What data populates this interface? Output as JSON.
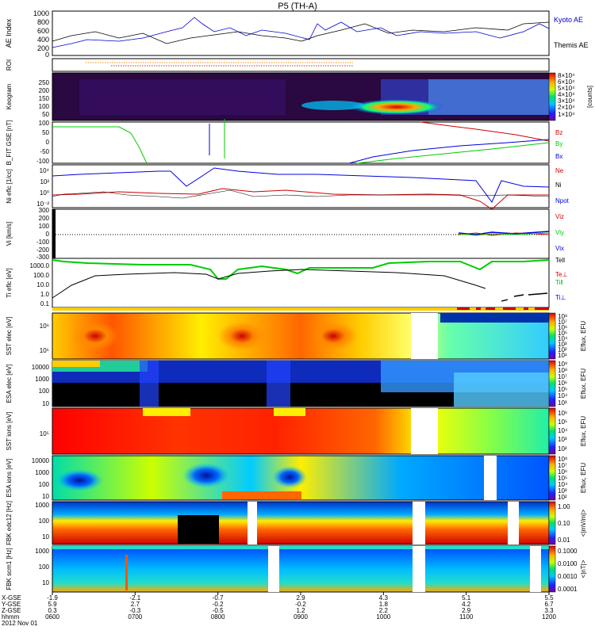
{
  "title": "P5 (TH-A)",
  "colors": {
    "kyoto": "#0000cc",
    "themis": "#000000",
    "red": "#d00000",
    "green": "#00cc00",
    "blue": "#0000dd",
    "black": "#000000",
    "orange": "#ff8800"
  },
  "chart_data": [
    {
      "type": "line",
      "id": "ae",
      "ylabel": "AE Index",
      "ylim": [
        0,
        1000
      ],
      "yticks": [
        "0",
        "200",
        "400",
        "600",
        "800",
        "1000"
      ],
      "series": [
        {
          "name": "Kyoto AE",
          "color": "#0000cc"
        },
        {
          "name": "Themis AE",
          "color": "#000000"
        }
      ],
      "values_hint": "AE varies 200-900 nT"
    },
    {
      "type": "line",
      "id": "roi",
      "ylabel": "ROI"
    },
    {
      "type": "heatmap",
      "id": "keogram",
      "ylabel": "Keogram",
      "yticks": [
        "50",
        "100",
        "150",
        "200",
        "250"
      ],
      "colorbar_label": "[counts]",
      "colorbar_ticks": [
        "8×10⁴",
        "6×10⁴",
        "5×10⁴",
        "4×10⁴",
        "3×10⁴",
        "2×10⁴",
        "1×10⁴"
      ]
    },
    {
      "type": "line",
      "id": "bfit",
      "ylabel": "B_FIT GSE [nT]",
      "ylim": [
        -100,
        100
      ],
      "yticks": [
        "100",
        "50",
        "0",
        "-50",
        "-100"
      ],
      "series": [
        {
          "name": "Bz",
          "color": "#d00000"
        },
        {
          "name": "By",
          "color": "#00cc00"
        },
        {
          "name": "Bx",
          "color": "#0000dd"
        }
      ]
    },
    {
      "type": "line",
      "id": "ni",
      "ylabel": "Ni eflc [1/cc]",
      "yticks": [
        "10⁴",
        "10²",
        "10⁰",
        "10⁻²"
      ],
      "series": [
        {
          "name": "Ne",
          "color": "#d00000"
        },
        {
          "name": "Ni",
          "color": "#000000"
        },
        {
          "name": "Npot",
          "color": "#0000dd"
        }
      ]
    },
    {
      "type": "line",
      "id": "vi",
      "ylabel": "Vi [km/s]",
      "ylim": [
        -300,
        300
      ],
      "yticks": [
        "300",
        "200",
        "100",
        "0",
        "-100",
        "-200",
        "-300"
      ],
      "series": [
        {
          "name": "Viz",
          "color": "#d00000"
        },
        {
          "name": "Viy",
          "color": "#00cc00"
        },
        {
          "name": "Vix",
          "color": "#0000dd"
        }
      ]
    },
    {
      "type": "line",
      "id": "ti",
      "ylabel": "Ti eflc [eV]",
      "yticks": [
        "1000.0",
        "100.0",
        "10.0",
        "1.0",
        "0.1"
      ],
      "series": [
        {
          "name": "Tell",
          "color": "#000000"
        },
        {
          "name": "Te⊥",
          "color": "#d00000"
        },
        {
          "name": "Ti‖",
          "color": "#00cc00"
        },
        {
          "name": "Ti⊥",
          "color": "#0000dd"
        }
      ]
    },
    {
      "type": "heatmap",
      "id": "sst_e",
      "ylabel": "SST elec [eV]",
      "yticks": [
        "10⁶",
        "10⁵"
      ],
      "colorbar_label": "Eflux, EFU",
      "colorbar_ticks": [
        "10⁸",
        "10⁷",
        "10⁶",
        "10⁵",
        "10⁴",
        "10³",
        "10²",
        "10¹"
      ]
    },
    {
      "type": "heatmap",
      "id": "esa_e",
      "ylabel": "ESA elec [eV]",
      "yticks": [
        "10000",
        "1000",
        "100",
        "10"
      ],
      "colorbar_label": "Eflux, EFU",
      "colorbar_ticks": [
        "10⁹",
        "10⁸",
        "10⁷",
        "10⁶",
        "10⁵",
        "10⁴",
        "10³"
      ]
    },
    {
      "type": "heatmap",
      "id": "sst_i",
      "ylabel": "SST ions [eV]",
      "yticks": [
        "10⁵"
      ],
      "colorbar_label": "Eflux, EFU",
      "colorbar_ticks": [
        "10⁶",
        "10⁵",
        "10⁴",
        "10³",
        "10²"
      ]
    },
    {
      "type": "heatmap",
      "id": "esa_i",
      "ylabel": "ESA ions [eV]",
      "yticks": [
        "10000",
        "1000",
        "100",
        "10"
      ],
      "colorbar_label": "Eflux, EFU",
      "colorbar_ticks": [
        "10⁸",
        "10⁷",
        "10⁶",
        "10⁵",
        "10⁴",
        "10³",
        "10²"
      ]
    },
    {
      "type": "heatmap",
      "id": "fbk_e12",
      "ylabel": "FBK edc12 [Hz]",
      "yticks": [
        "1000",
        "100",
        "10"
      ],
      "colorbar_label": "<|mV/m|>",
      "colorbar_ticks": [
        "1.00",
        "0.10",
        "0.01"
      ]
    },
    {
      "type": "heatmap",
      "id": "fbk_b",
      "ylabel": "FBK scm1 [Hz]",
      "yticks": [
        "1000",
        "100",
        "10"
      ],
      "colorbar_label": "<|nT|>",
      "colorbar_ticks": [
        "0.1000",
        "0.0100",
        "0.0010",
        "0.0001"
      ]
    }
  ],
  "xaxis": {
    "rows": [
      {
        "label": "X-GSE",
        "values": [
          "-1.9",
          "-2.1",
          "-0.7",
          "2.9",
          "4.3",
          "5.1",
          "5.5"
        ]
      },
      {
        "label": "Y-GSE",
        "values": [
          "5.9",
          "2.7",
          "-0.2",
          "-0.2",
          "1.8",
          "4.2",
          "6.7"
        ]
      },
      {
        "label": "Z-GSE",
        "values": [
          "0.3",
          "-0.3",
          "-0.5",
          "1.2",
          "2.2",
          "2.9",
          "3.3"
        ]
      },
      {
        "label": "hhmm",
        "values": [
          "0600",
          "0700",
          "0800",
          "0900",
          "1000",
          "1100",
          "1200"
        ]
      }
    ],
    "date": "2012 Nov 01"
  }
}
